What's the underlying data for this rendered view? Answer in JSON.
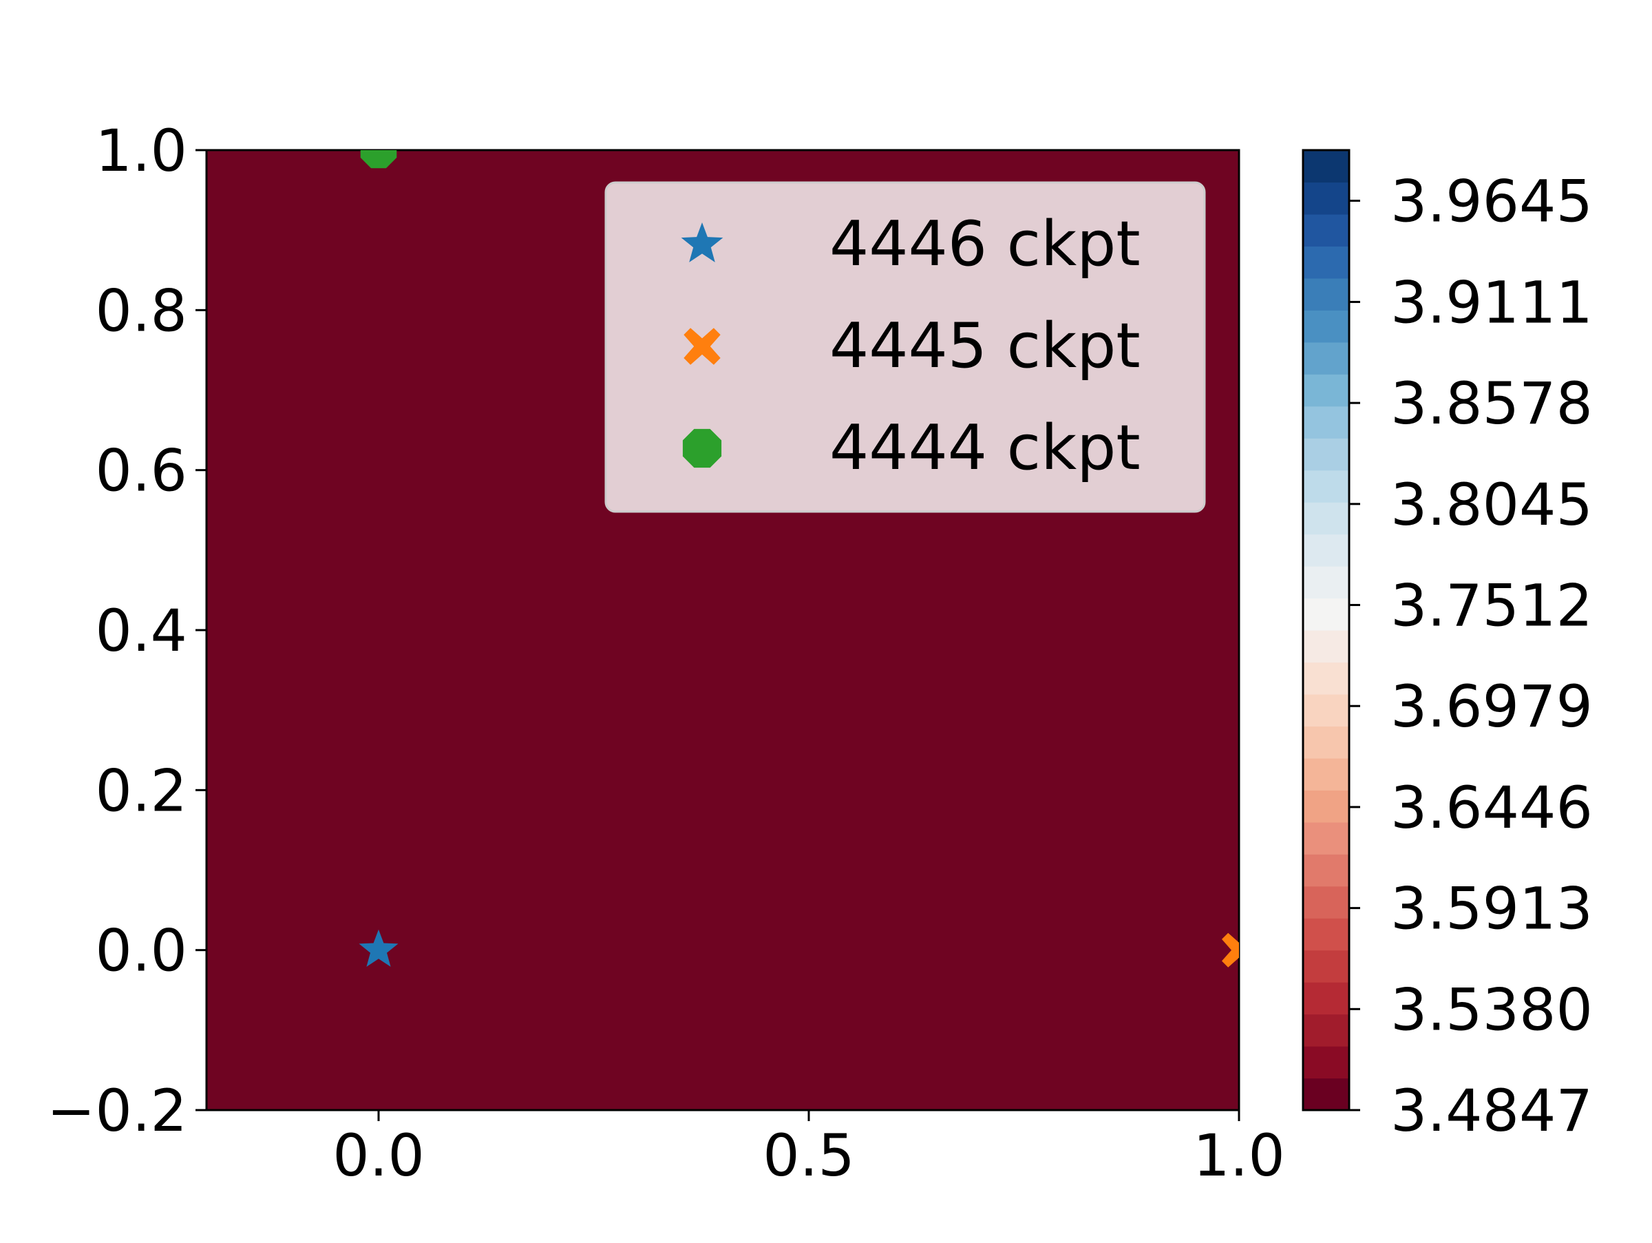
{
  "chart_data": {
    "type": "heatmap",
    "title": "",
    "xlabel": "",
    "ylabel": "",
    "xlim": [
      -0.2,
      1.0
    ],
    "ylim": [
      -0.2,
      1.0
    ],
    "x_ticks": [
      "0.0",
      "0.5",
      "1.0"
    ],
    "y_ticks": [
      "−0.2",
      "0.0",
      "0.2",
      "0.4",
      "0.6",
      "0.8",
      "1.0"
    ],
    "field": {
      "value_range": [
        3.4847,
        4.0
      ],
      "fill_color": "#6f0422",
      "note_color": "uniform dark red (minimum level) across the visible region"
    },
    "series": [
      {
        "name": "4446 ckpt",
        "marker": "star",
        "color": "#1f77b4",
        "x": 0.0,
        "y": 0.0
      },
      {
        "name": "4445 ckpt",
        "marker": "x-filled",
        "color": "#ff7f0e",
        "x": 1.0,
        "y": 0.0
      },
      {
        "name": "4444 ckpt",
        "marker": "octagon",
        "color": "#2ca02c",
        "x": 0.0,
        "y": 1.0
      }
    ],
    "legend": {
      "position": "top-right"
    },
    "colorbar": {
      "colormap": "RdBu",
      "min": 3.4847,
      "max": 3.9912,
      "levels": 30,
      "tick_values": [
        3.4847,
        3.538,
        3.5913,
        3.6446,
        3.6979,
        3.7512,
        3.8045,
        3.8578,
        3.9111,
        3.9645
      ],
      "tick_labels": [
        "3.4847",
        "3.5380",
        "3.5913",
        "3.6446",
        "3.6979",
        "3.7512",
        "3.8045",
        "3.8578",
        "3.9111",
        "3.9645"
      ],
      "colors": [
        "#6a0021",
        "#8a0b25",
        "#a11c2c",
        "#b52a34",
        "#c33d3e",
        "#d0504b",
        "#d8645a",
        "#e17a6b",
        "#ea907c",
        "#f0a385",
        "#f4b598",
        "#f7c6ad",
        "#f9d4c0",
        "#f9e0d2",
        "#f6eae4",
        "#f4f4f3",
        "#eaeff2",
        "#dde9f0",
        "#cfe3ed",
        "#bedbea",
        "#aacfe4",
        "#94c4df",
        "#7ab6d6",
        "#62a3cc",
        "#4a90c2",
        "#3a7eb8",
        "#2c6aaf",
        "#2056a0",
        "#14458a",
        "#0c3770"
      ]
    }
  }
}
